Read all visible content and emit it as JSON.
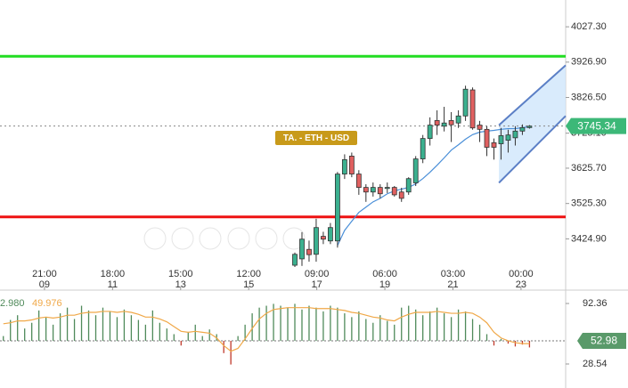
{
  "chart_data": [
    {
      "type": "candlestick",
      "x": [
        165.5,
        170.2,
        174.9,
        179.6,
        184.3,
        189.0,
        193.7,
        198.4,
        203.1,
        207.8,
        212.5,
        217.2,
        221.9,
        226.6,
        231.3,
        236.0,
        240.7,
        245.4,
        250.1,
        254.8,
        259.5,
        264.2,
        268.9,
        273.6,
        278.3,
        283.0,
        287.7,
        292.4,
        297.1,
        301.8,
        306.5,
        311.2,
        315.9,
        320.6
      ],
      "open": [
        3350,
        3368,
        3395,
        3381,
        3432,
        3419,
        3419,
        3609,
        3660,
        3609,
        3571,
        3558,
        3571,
        3568,
        3571,
        3558,
        3558,
        3584,
        3652,
        3710,
        3761,
        3745,
        3761,
        3754,
        3774,
        3848,
        3748,
        3736,
        3698,
        3695,
        3705,
        3712,
        3731,
        3741
      ],
      "high": [
        3386,
        3444,
        3420,
        3482,
        3445,
        3470,
        3615,
        3665,
        3670,
        3620,
        3580,
        3585,
        3580,
        3585,
        3575,
        3570,
        3600,
        3660,
        3720,
        3770,
        3790,
        3800,
        3785,
        3790,
        3860,
        3855,
        3760,
        3745,
        3710,
        3740,
        3735,
        3745,
        3750,
        3748
      ],
      "low": [
        3345,
        3348,
        3360,
        3360,
        3410,
        3410,
        3400,
        3595,
        3600,
        3550,
        3530,
        3545,
        3540,
        3555,
        3545,
        3530,
        3550,
        3575,
        3640,
        3690,
        3720,
        3730,
        3700,
        3740,
        3760,
        3735,
        3700,
        3660,
        3650,
        3650,
        3670,
        3690,
        3720,
        3738
      ],
      "close": [
        3381,
        3424,
        3380,
        3457,
        3424,
        3457,
        3609,
        3650,
        3609,
        3571,
        3558,
        3571,
        3553,
        3571,
        3550,
        3540,
        3596,
        3652,
        3710,
        3748,
        3748,
        3754,
        3749,
        3774,
        3850,
        3740,
        3736,
        3685,
        3685,
        3718,
        3720,
        3731,
        3741,
        3745
      ],
      "up_color": "#3bb08f",
      "down_color": "#e06060",
      "series": [
        {
          "type": "line",
          "color": "#4a8fd8",
          "values": [
            null,
            null,
            null,
            null,
            null,
            null,
            3406,
            3449,
            3475,
            3500,
            3515,
            3530,
            3540,
            3553,
            3561,
            3566,
            3571,
            3581,
            3596,
            3614,
            3634,
            3655,
            3677,
            3692,
            3708,
            3721,
            3728,
            3731,
            3733,
            3736,
            3738,
            3738,
            3741,
            3743
          ]
        }
      ],
      "hlines": [
        {
          "value": 3943.6,
          "color": "#22dd22"
        },
        {
          "value": 3487.2,
          "color": "#ee1111"
        }
      ],
      "channel": {
        "x": [
          300.4,
          344.5
        ],
        "upper": [
          3748,
          3918
        ],
        "lower": [
          3584,
          3774
        ],
        "color": "#5b7fc6",
        "fill": "#cfe6fb"
      },
      "label": "TA. - ETH - USD",
      "last_price": 3745.34,
      "last_color": "#3cb878",
      "xlim": [
        -29.4,
        344.5
      ],
      "ylim": [
        3279.3,
        4103.4
      ],
      "xticks": [
        {
          "value": 0,
          "label": "21:00",
          "day": "09"
        },
        {
          "value": 45,
          "label": "18:00",
          "day": "11"
        },
        {
          "value": 90,
          "label": "15:00",
          "day": "13"
        },
        {
          "value": 135,
          "label": "12:00",
          "day": "15"
        },
        {
          "value": 180,
          "label": "09:00",
          "day": "17"
        },
        {
          "value": 225,
          "label": "06:00",
          "day": "19"
        },
        {
          "value": 270,
          "label": "03:00",
          "day": "21"
        },
        {
          "value": 315,
          "label": "00:00",
          "day": "23"
        }
      ],
      "yticks": [
        {
          "value": 4027.3,
          "label": "4027.30"
        },
        {
          "value": 3926.9,
          "label": "3926.90"
        },
        {
          "value": 3826.5,
          "label": "3826.50"
        },
        {
          "value": 3725.1,
          "label": "3725.10"
        },
        {
          "value": 3625.7,
          "label": "3625.70"
        },
        {
          "value": 3525.3,
          "label": "3525.30"
        },
        {
          "value": 3424.9,
          "label": "3424.90"
        }
      ]
    },
    {
      "type": "bar",
      "labels": [
        "2.980",
        "49.976"
      ],
      "x": [
        -27.2,
        -22.5,
        -17.8,
        -13.1,
        -8.4,
        -3.7,
        1.0,
        5.7,
        10.4,
        15.1,
        19.8,
        24.5,
        29.2,
        33.9,
        38.6,
        43.3,
        48.0,
        52.7,
        57.4,
        62.1,
        66.8,
        71.5,
        76.2,
        80.9,
        85.6,
        90.3,
        95.0,
        99.7,
        104.4,
        109.1,
        113.8,
        118.5,
        123.2,
        127.9,
        132.6,
        137.3,
        142.0,
        146.7,
        151.4,
        156.1,
        160.8,
        165.5,
        170.2,
        174.9,
        179.6,
        184.3,
        189.0,
        193.7,
        198.4,
        203.1,
        207.8,
        212.5,
        217.2,
        221.9,
        226.6,
        231.3,
        236.0,
        240.7,
        245.4,
        250.1,
        254.8,
        259.5,
        264.2,
        268.9,
        273.6,
        278.3,
        283.0,
        287.7,
        292.4,
        297.1,
        301.8,
        306.5,
        311.2,
        315.9,
        320.6
      ],
      "series": [
        {
          "type": "bar",
          "color": "#4f8a5a",
          "down_color": "#c0392b",
          "values": [
            58,
            75,
            80,
            66,
            72,
            85,
            78,
            70,
            82,
            88,
            76,
            90,
            85,
            80,
            88,
            84,
            78,
            86,
            80,
            75,
            70,
            85,
            72,
            66,
            60,
            48,
            62,
            70,
            58,
            65,
            60,
            40,
            28,
            58,
            70,
            82,
            88,
            90,
            92,
            90,
            88,
            92,
            86,
            90,
            88,
            84,
            90,
            88,
            82,
            78,
            84,
            76,
            72,
            80,
            74,
            70,
            88,
            90,
            86,
            80,
            84,
            88,
            82,
            78,
            86,
            84,
            76,
            70,
            60,
            48,
            55,
            50,
            47,
            49,
            46
          ]
        },
        {
          "type": "line",
          "color": "#f0a848",
          "values": [
            71,
            72,
            74,
            74,
            75,
            77,
            78,
            77,
            78,
            80,
            80,
            82,
            83,
            83,
            84,
            84,
            83,
            84,
            83,
            81,
            78,
            78,
            76,
            73,
            68,
            63,
            62,
            63,
            62,
            61,
            56,
            48,
            42,
            45,
            55,
            66,
            76,
            82,
            86,
            87,
            88,
            88,
            88,
            88,
            87,
            87,
            87,
            86,
            85,
            83,
            82,
            80,
            78,
            77,
            75,
            74,
            78,
            81,
            83,
            83,
            83,
            84,
            83,
            82,
            82,
            83,
            82,
            78,
            72,
            62,
            56,
            53,
            51,
            50,
            50
          ]
        }
      ],
      "last_value": 52.98,
      "last_color": "#5a9a6a",
      "xlim": [
        -29.4,
        344.5
      ],
      "ylim": [
        3.2,
        104.6
      ],
      "yticks": [
        92.36,
        28.54
      ]
    }
  ]
}
